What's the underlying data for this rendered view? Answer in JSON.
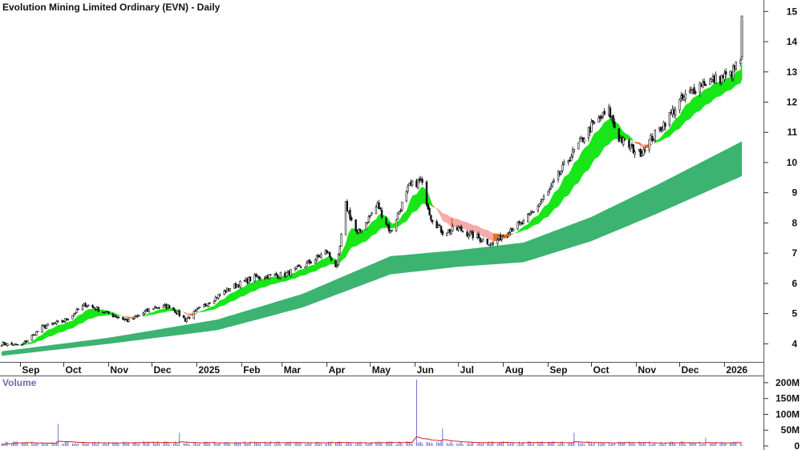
{
  "chart_data": {
    "type": "candlestick",
    "title": "Evolution Mining Limited Ordinary (EVN) - Daily",
    "x_labels": [
      "Sep",
      "Oct",
      "Nov",
      "Dec",
      "2025",
      "Feb",
      "Mar",
      "Apr",
      "May",
      "Jun",
      "Jul",
      "Aug",
      "Sep",
      "Oct",
      "Nov",
      "Dec",
      "2026"
    ],
    "y_ticks": [
      4,
      5,
      6,
      7,
      8,
      9,
      10,
      11,
      12,
      13,
      14,
      15
    ],
    "ylim": [
      3.4,
      15.3
    ],
    "price_anchors": [
      {
        "date": "2024-08-19",
        "close": 4.0
      },
      {
        "date": "2024-09-02",
        "close": 3.95
      },
      {
        "date": "2024-09-16",
        "close": 4.55
      },
      {
        "date": "2024-10-01",
        "close": 4.75
      },
      {
        "date": "2024-10-16",
        "close": 5.3
      },
      {
        "date": "2024-11-01",
        "close": 5.0
      },
      {
        "date": "2024-11-15",
        "close": 4.75
      },
      {
        "date": "2024-12-02",
        "close": 5.2
      },
      {
        "date": "2024-12-13",
        "close": 5.25
      },
      {
        "date": "2024-12-24",
        "close": 4.8
      },
      {
        "date": "2025-01-10",
        "close": 5.4
      },
      {
        "date": "2025-01-24",
        "close": 5.85
      },
      {
        "date": "2025-02-10",
        "close": 6.2
      },
      {
        "date": "2025-03-03",
        "close": 6.3
      },
      {
        "date": "2025-03-17",
        "close": 6.6
      },
      {
        "date": "2025-04-01",
        "close": 7.05
      },
      {
        "date": "2025-04-08",
        "close": 6.5
      },
      {
        "date": "2025-04-14",
        "close": 8.6
      },
      {
        "date": "2025-04-22",
        "close": 7.6
      },
      {
        "date": "2025-05-06",
        "close": 8.6
      },
      {
        "date": "2025-05-15",
        "close": 7.7
      },
      {
        "date": "2025-05-28",
        "close": 9.2
      },
      {
        "date": "2025-06-05",
        "close": 9.4
      },
      {
        "date": "2025-06-12",
        "close": 8.2
      },
      {
        "date": "2025-06-20",
        "close": 7.7
      },
      {
        "date": "2025-07-01",
        "close": 7.8
      },
      {
        "date": "2025-07-15",
        "close": 7.5
      },
      {
        "date": "2025-07-25",
        "close": 7.3
      },
      {
        "date": "2025-08-05",
        "close": 7.8
      },
      {
        "date": "2025-08-15",
        "close": 8.0
      },
      {
        "date": "2025-09-01",
        "close": 9.0
      },
      {
        "date": "2025-09-15",
        "close": 10.1
      },
      {
        "date": "2025-10-01",
        "close": 11.2
      },
      {
        "date": "2025-10-13",
        "close": 11.7
      },
      {
        "date": "2025-10-20",
        "close": 10.8
      },
      {
        "date": "2025-11-03",
        "close": 10.3
      },
      {
        "date": "2025-11-17",
        "close": 11.1
      },
      {
        "date": "2025-12-01",
        "close": 12.0
      },
      {
        "date": "2025-12-15",
        "close": 12.6
      },
      {
        "date": "2026-01-05",
        "close": 12.9
      },
      {
        "date": "2026-01-12",
        "close": 13.4
      },
      {
        "date": "2026-01-13",
        "close": 14.7
      }
    ],
    "short_band": {
      "name": "",
      "colors": {
        "up": "#19e619",
        "down": "#e8731c",
        "flat": "#f6aaaa"
      }
    },
    "long_band": {
      "name": "",
      "color": "#3cb371",
      "anchors": [
        {
          "date": "2024-08-19",
          "low": 3.6,
          "high": 3.75
        },
        {
          "date": "2024-11-01",
          "low": 4.0,
          "high": 4.2
        },
        {
          "date": "2025-01-15",
          "low": 4.45,
          "high": 4.8
        },
        {
          "date": "2025-03-15",
          "low": 5.2,
          "high": 5.65
        },
        {
          "date": "2025-05-15",
          "low": 6.3,
          "high": 6.9
        },
        {
          "date": "2025-07-01",
          "low": 6.55,
          "high": 7.1
        },
        {
          "date": "2025-08-15",
          "low": 6.7,
          "high": 7.35
        },
        {
          "date": "2025-10-01",
          "low": 7.4,
          "high": 8.2
        },
        {
          "date": "2025-11-15",
          "low": 8.3,
          "high": 9.25
        },
        {
          "date": "2026-01-13",
          "low": 9.55,
          "high": 10.7
        }
      ]
    },
    "volume": {
      "title": "Volume",
      "y_ticks": [
        "0",
        "50M",
        "100M",
        "150M",
        "200M"
      ],
      "y_values": [
        0,
        50,
        100,
        150,
        200
      ],
      "ylim": [
        0,
        215
      ],
      "baseline_millions": 10,
      "spikes": [
        {
          "date": "2024-09-27",
          "value": 70
        },
        {
          "date": "2024-12-20",
          "value": 42
        },
        {
          "date": "2025-06-02",
          "value": 210
        },
        {
          "date": "2025-06-20",
          "value": 55
        },
        {
          "date": "2025-09-19",
          "value": 42
        },
        {
          "date": "2025-12-19",
          "value": 26
        }
      ],
      "bar_color": "#5050c8",
      "ma_color": "#d02020"
    },
    "grid": false,
    "legend": "none"
  }
}
